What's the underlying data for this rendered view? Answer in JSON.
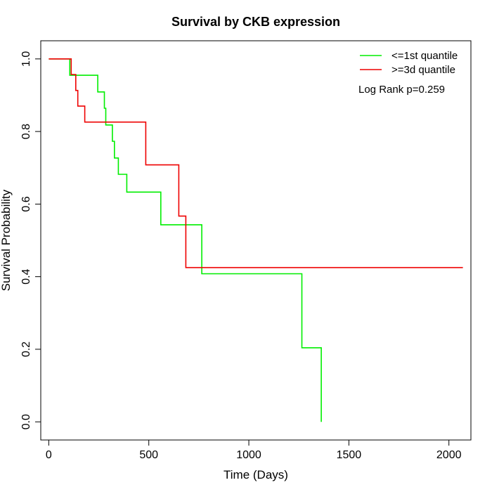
{
  "chart_data": {
    "type": "line",
    "title": "Survival by CKB expression",
    "xlabel": "Time (Days)",
    "ylabel": "Survival Probability",
    "xlim": [
      -40,
      2110
    ],
    "ylim": [
      -0.05,
      1.05
    ],
    "xticks": [
      0,
      500,
      1000,
      1500,
      2000
    ],
    "xtick_labels": [
      "0",
      "500",
      "1000",
      "1500",
      "2000"
    ],
    "yticks": [
      0.0,
      0.2,
      0.4,
      0.6,
      0.8,
      1.0
    ],
    "ytick_labels": [
      "0.0",
      "0.2",
      "0.4",
      "0.6",
      "0.8",
      "1.0"
    ],
    "grid": false,
    "legend_position": "top-right",
    "annotation": "Log Rank p=0.259",
    "series": [
      {
        "name": "<=1st quantile",
        "color": "#00ee00",
        "step_points": [
          [
            0,
            1.0
          ],
          [
            105,
            0.955
          ],
          [
            245,
            0.909
          ],
          [
            278,
            0.864
          ],
          [
            285,
            0.818
          ],
          [
            318,
            0.773
          ],
          [
            328,
            0.727
          ],
          [
            348,
            0.682
          ],
          [
            390,
            0.633
          ],
          [
            560,
            0.543
          ],
          [
            765,
            0.408
          ],
          [
            1265,
            0.204
          ],
          [
            1362,
            0.0
          ]
        ],
        "end_x": 1362
      },
      {
        "name": ">=3d quantile",
        "color": "#ee0000",
        "step_points": [
          [
            0,
            1.0
          ],
          [
            112,
            0.957
          ],
          [
            135,
            0.913
          ],
          [
            145,
            0.87
          ],
          [
            180,
            0.826
          ],
          [
            485,
            0.708
          ],
          [
            650,
            0.567
          ],
          [
            685,
            0.425
          ]
        ],
        "end_x": 2070
      }
    ]
  }
}
